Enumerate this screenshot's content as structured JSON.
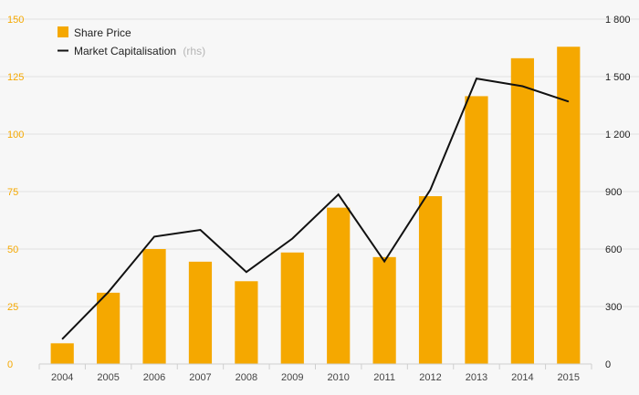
{
  "chart_data": {
    "type": "bar",
    "categories": [
      "2004",
      "2005",
      "2006",
      "2007",
      "2008",
      "2009",
      "2010",
      "2011",
      "2012",
      "2013",
      "2014",
      "2015"
    ],
    "series": [
      {
        "name": "Share Price",
        "type": "bar",
        "axis": "left",
        "color": "#f5a800",
        "values": [
          9,
          31,
          50,
          44.5,
          36,
          48.5,
          68,
          46.5,
          73,
          116.5,
          133,
          138
        ]
      },
      {
        "name": "Market Capitalisation",
        "type": "line",
        "axis": "right",
        "color": "#111111",
        "values": [
          130,
          375,
          665,
          700,
          480,
          655,
          885,
          535,
          910,
          1490,
          1450,
          1370
        ]
      }
    ],
    "legend": {
      "items": [
        {
          "label": "Share Price",
          "note": ""
        },
        {
          "label": "Market Capitalisation",
          "note": "(rhs)"
        }
      ],
      "position": "top-left"
    },
    "y_left": {
      "range": [
        0,
        150
      ],
      "ticks": [
        "0",
        "25",
        "50",
        "75",
        "100",
        "125",
        "150"
      ],
      "tick_values": [
        0,
        25,
        50,
        75,
        100,
        125,
        150
      ],
      "color": "#f5a800"
    },
    "y_right": {
      "range": [
        0,
        1800
      ],
      "ticks": [
        "0",
        "300",
        "600",
        "900",
        "1 200",
        "1 500",
        "1 800"
      ],
      "tick_values": [
        0,
        300,
        600,
        900,
        1200,
        1500,
        1800
      ]
    },
    "grid": "horizontal",
    "title": "",
    "xlabel": "",
    "ylabel": ""
  }
}
